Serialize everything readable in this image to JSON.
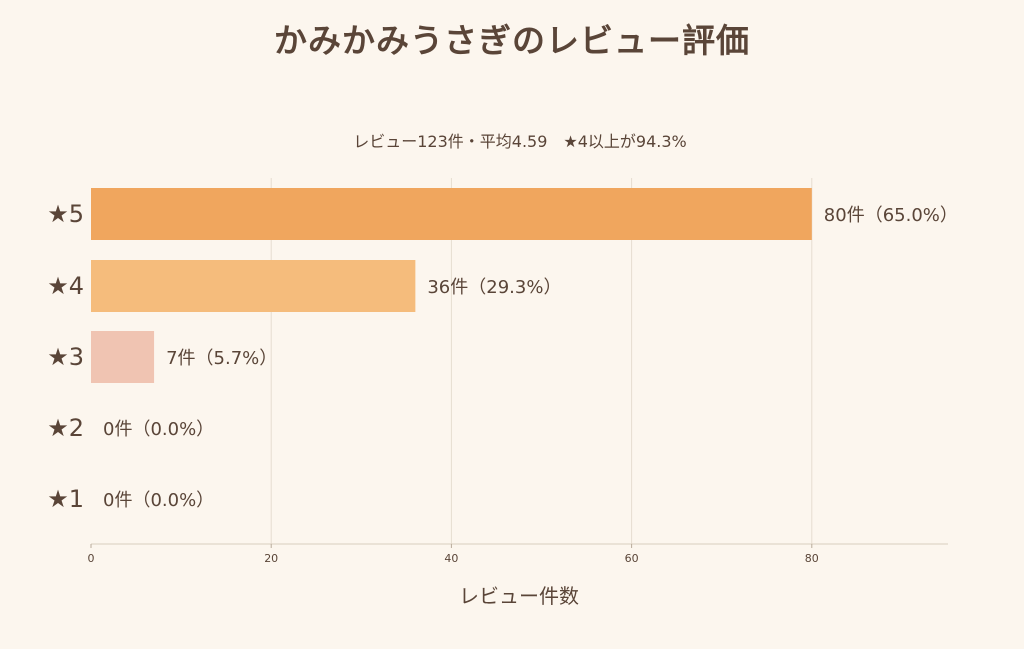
{
  "chart_data": {
    "type": "bar",
    "orientation": "horizontal",
    "title": "かみかみうさぎのレビュー評価",
    "subtitle": "レビュー123件・平均4.59　★4以上が94.3%",
    "xlabel": "レビュー件数",
    "ylabel": "",
    "categories": [
      "★5",
      "★4",
      "★3",
      "★2",
      "★1"
    ],
    "values": [
      80,
      36,
      7,
      0,
      0
    ],
    "data_labels": [
      "80件（65.0%）",
      "36件（29.3%）",
      "7件（5.7%）",
      "0件（0.0%）",
      "0件（0.0%）"
    ],
    "bar_colors": [
      "#f0a65e",
      "#f5bc7c",
      "#f0c4b2",
      "#f0c4b2",
      "#f0c4b2"
    ],
    "xlim": [
      0,
      95
    ],
    "xticks": [
      0,
      20,
      40,
      60,
      80
    ],
    "grid": true,
    "legend": "none"
  }
}
